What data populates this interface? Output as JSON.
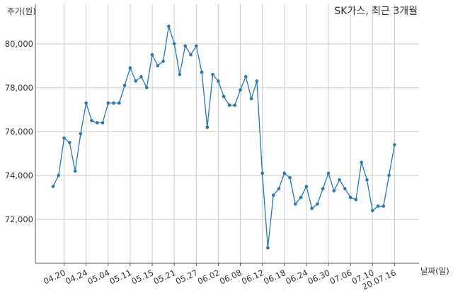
{
  "chart_data": {
    "type": "line",
    "title": "SK가스, 최근 3개월",
    "ylabel": "주가(원)",
    "xlabel": "날짜(일)",
    "ylim": [
      70000,
      81800
    ],
    "grid": true,
    "line_color": "#2878b0",
    "yticks": [
      72000,
      74000,
      76000,
      78000,
      80000
    ],
    "ytick_labels": [
      "72,000",
      "74,000",
      "76,000",
      "78,000",
      "80,000"
    ],
    "x_ticks": [
      {
        "index": 2,
        "label": "04.20"
      },
      {
        "index": 6,
        "label": "04.24"
      },
      {
        "index": 10,
        "label": "05.04"
      },
      {
        "index": 14,
        "label": "05.11"
      },
      {
        "index": 18,
        "label": "05.15"
      },
      {
        "index": 22,
        "label": "05.21"
      },
      {
        "index": 26,
        "label": "05.27"
      },
      {
        "index": 30,
        "label": "06.02"
      },
      {
        "index": 34,
        "label": "06.08"
      },
      {
        "index": 38,
        "label": "06.12"
      },
      {
        "index": 42,
        "label": "06.18"
      },
      {
        "index": 46,
        "label": "06.24"
      },
      {
        "index": 50,
        "label": "06.30"
      },
      {
        "index": 54,
        "label": "07.06"
      },
      {
        "index": 58,
        "label": "07.10"
      },
      {
        "index": 62,
        "label": "20.07.16"
      }
    ],
    "values": [
      73500,
      74000,
      75700,
      75500,
      74200,
      75900,
      77300,
      76500,
      76400,
      76400,
      77300,
      77300,
      77300,
      78100,
      78900,
      78300,
      78500,
      78000,
      79500,
      79000,
      79200,
      80800,
      80000,
      78600,
      79900,
      79500,
      79900,
      78700,
      76200,
      78600,
      78300,
      77600,
      77200,
      77200,
      77900,
      78500,
      77500,
      78300,
      74100,
      70700,
      73100,
      73400,
      74100,
      73900,
      72700,
      73000,
      73500,
      72500,
      72700,
      73400,
      74100,
      73300,
      73800,
      73400,
      73000,
      72900,
      74600,
      73800,
      72400,
      72600,
      72600,
      74000,
      75400
    ]
  }
}
